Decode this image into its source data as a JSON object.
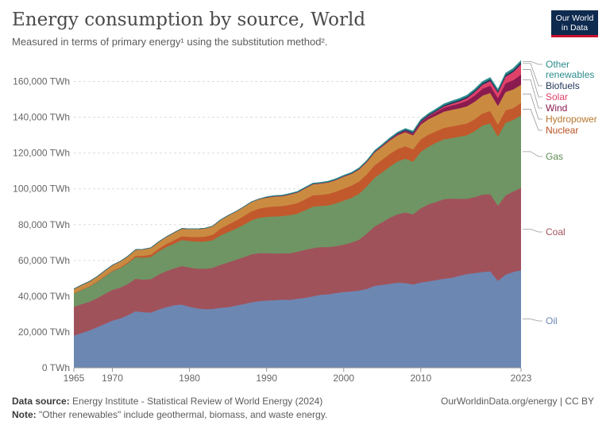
{
  "header": {
    "title": "Energy consumption by source, World",
    "subtitle": "Measured in terms of primary energy¹ using the substitution method².",
    "logo_line1": "Our World",
    "logo_line2": "in Data"
  },
  "footer": {
    "source_label": "Data source:",
    "source_text": "Energy Institute - Statistical Review of World Energy (2024)",
    "url_text": "OurWorldinData.org/energy | CC BY",
    "note_label": "Note:",
    "note_text": "\"Other renewables\" include geothermal, biomass, and waste energy."
  },
  "chart_data": {
    "type": "area",
    "stacked": true,
    "y_unit": "TWh",
    "ylim": [
      0,
      170000
    ],
    "y_ticks": [
      0,
      20000,
      40000,
      60000,
      80000,
      100000,
      120000,
      140000,
      160000
    ],
    "y_tick_labels": [
      "0 TWh",
      "20,000 TWh",
      "40,000 TWh",
      "60,000 TWh",
      "80,000 TWh",
      "100,000 TWh",
      "120,000 TWh",
      "140,000 TWh",
      "160,000 TWh"
    ],
    "x_ticks": [
      1965,
      1970,
      1980,
      1990,
      2000,
      2010,
      2023
    ],
    "x_tick_labels": [
      "1965",
      "1970",
      "1980",
      "1990",
      "2000",
      "2010",
      "2023"
    ],
    "grid": true,
    "legend_placement": "right, labels at series ends",
    "x": [
      1965,
      1966,
      1967,
      1968,
      1969,
      1970,
      1971,
      1972,
      1973,
      1974,
      1975,
      1976,
      1977,
      1978,
      1979,
      1980,
      1981,
      1982,
      1983,
      1984,
      1985,
      1986,
      1987,
      1988,
      1989,
      1990,
      1991,
      1992,
      1993,
      1994,
      1995,
      1996,
      1997,
      1998,
      1999,
      2000,
      2001,
      2002,
      2003,
      2004,
      2005,
      2006,
      2007,
      2008,
      2009,
      2010,
      2011,
      2012,
      2013,
      2014,
      2015,
      2016,
      2017,
      2018,
      2019,
      2020,
      2021,
      2022,
      2023
    ],
    "series": [
      {
        "name": "Oil",
        "color": "#6d87b3",
        "values": [
          18000,
          19300,
          20800,
          22500,
          24400,
          26300,
          27500,
          29300,
          31500,
          31000,
          30800,
          32500,
          33800,
          34900,
          35300,
          34000,
          33200,
          32700,
          32800,
          33500,
          33800,
          34700,
          35500,
          36500,
          37200,
          37500,
          37700,
          38000,
          37900,
          38500,
          39000,
          39900,
          40700,
          41000,
          41700,
          42300,
          42600,
          43100,
          44000,
          45700,
          46300,
          46900,
          47500,
          47300,
          46500,
          47600,
          48200,
          49000,
          49700,
          50200,
          51300,
          52300,
          52900,
          53500,
          53800,
          48500,
          52000,
          53500,
          54500
        ]
      },
      {
        "name": "Coal",
        "color": "#a0525b",
        "values": [
          16000,
          16200,
          16000,
          16300,
          16800,
          17200,
          17200,
          17500,
          18200,
          18200,
          18700,
          19500,
          20200,
          20600,
          21500,
          22000,
          22200,
          22600,
          23000,
          24000,
          25000,
          25600,
          26200,
          26800,
          26800,
          26500,
          26100,
          25900,
          26000,
          26300,
          26900,
          26900,
          26700,
          26400,
          26200,
          26500,
          27300,
          28400,
          31000,
          33200,
          35000,
          37000,
          38300,
          39400,
          39200,
          41500,
          43100,
          43600,
          44500,
          44300,
          43100,
          42100,
          42500,
          43200,
          43200,
          42000,
          44300,
          45000,
          46000
        ]
      },
      {
        "name": "Gas",
        "color": "#6e9563",
        "values": [
          7500,
          8000,
          8500,
          9100,
          9800,
          10400,
          11000,
          11500,
          12000,
          12300,
          12400,
          13000,
          13400,
          13800,
          14500,
          14800,
          15000,
          15200,
          15400,
          16400,
          17000,
          17300,
          18100,
          18900,
          19700,
          20300,
          20700,
          20800,
          21300,
          21300,
          22100,
          23200,
          23000,
          23300,
          23900,
          24600,
          25000,
          25700,
          26300,
          27200,
          27900,
          28500,
          29500,
          30100,
          29400,
          31500,
          32200,
          33100,
          33400,
          33800,
          34700,
          35500,
          36800,
          38600,
          39500,
          38600,
          40600,
          40000,
          40600
        ]
      },
      {
        "name": "Nuclear",
        "color": "#c2592c",
        "values": [
          80,
          110,
          160,
          200,
          250,
          300,
          400,
          550,
          750,
          950,
          1300,
          1450,
          1750,
          2000,
          2100,
          2250,
          2600,
          2750,
          3100,
          3700,
          4200,
          4500,
          4800,
          5100,
          5200,
          5350,
          5600,
          5600,
          5800,
          5900,
          6100,
          6300,
          6200,
          6400,
          6600,
          6700,
          6800,
          6900,
          6800,
          7000,
          7050,
          7100,
          7000,
          6900,
          6850,
          7000,
          6800,
          6400,
          6400,
          6500,
          6550,
          6600,
          6650,
          6750,
          6900,
          6700,
          6900,
          6600,
          6800
        ]
      },
      {
        "name": "Hydropower",
        "color": "#ca8b41",
        "values": [
          2500,
          2650,
          2750,
          2850,
          3000,
          3200,
          3350,
          3500,
          3550,
          3800,
          3900,
          4000,
          4050,
          4300,
          4450,
          4600,
          4650,
          4700,
          4850,
          5000,
          5100,
          5200,
          5250,
          5350,
          5400,
          5550,
          5700,
          5700,
          5900,
          6000,
          6250,
          6300,
          6400,
          6500,
          6550,
          6700,
          6600,
          6700,
          6800,
          7100,
          7300,
          7500,
          7600,
          7900,
          7900,
          8300,
          8600,
          8800,
          9100,
          9300,
          9300,
          9600,
          9800,
          10000,
          10100,
          10400,
          10300,
          10400,
          10200
        ]
      },
      {
        "name": "Wind",
        "color": "#8a1b4f",
        "values": [
          0,
          0,
          0,
          0,
          0,
          0,
          0,
          0,
          0,
          0,
          0,
          0,
          0,
          0,
          0,
          0,
          0,
          0,
          0,
          0,
          0,
          0,
          0,
          0,
          0,
          10,
          15,
          20,
          25,
          30,
          40,
          50,
          60,
          80,
          100,
          120,
          150,
          200,
          250,
          330,
          400,
          500,
          650,
          800,
          1000,
          1250,
          1500,
          1800,
          2100,
          2400,
          2700,
          3100,
          3500,
          3800,
          4100,
          4400,
          4800,
          5200,
          5700
        ]
      },
      {
        "name": "Solar",
        "color": "#e04169",
        "values": [
          0,
          0,
          0,
          0,
          0,
          0,
          0,
          0,
          0,
          0,
          0,
          0,
          0,
          0,
          0,
          0,
          0,
          0,
          0,
          0,
          0,
          0,
          0,
          0,
          0,
          0,
          0,
          0,
          0,
          0,
          0,
          0,
          0,
          0,
          0,
          3,
          5,
          8,
          12,
          15,
          20,
          30,
          40,
          50,
          100,
          200,
          300,
          500,
          700,
          900,
          1100,
          1400,
          1800,
          2200,
          2600,
          3000,
          3700,
          4500,
          5700
        ]
      },
      {
        "name": "Biofuels",
        "color": "#23365c",
        "values": [
          0,
          0,
          0,
          0,
          0,
          0,
          0,
          0,
          0,
          0,
          0,
          0,
          0,
          0,
          0,
          0,
          0,
          0,
          0,
          0,
          0,
          0,
          0,
          0,
          0,
          100,
          100,
          110,
          110,
          120,
          130,
          130,
          140,
          140,
          150,
          160,
          170,
          180,
          200,
          230,
          270,
          340,
          430,
          530,
          580,
          640,
          650,
          670,
          740,
          800,
          810,
          820,
          860,
          930,
          960,
          900,
          960,
          1000,
          1100
        ]
      },
      {
        "name": "Other renewables",
        "color": "#2c8c8c",
        "values": [
          0,
          0,
          0,
          0,
          0,
          0,
          0,
          0,
          0,
          0,
          0,
          0,
          0,
          0,
          0,
          0,
          0,
          0,
          0,
          0,
          0,
          0,
          0,
          0,
          0,
          300,
          320,
          340,
          360,
          380,
          400,
          420,
          440,
          460,
          480,
          500,
          520,
          540,
          560,
          590,
          620,
          650,
          680,
          710,
          730,
          760,
          790,
          820,
          850,
          880,
          910,
          940,
          970,
          1000,
          1030,
          1050,
          1080,
          1100,
          1120
        ]
      }
    ]
  }
}
